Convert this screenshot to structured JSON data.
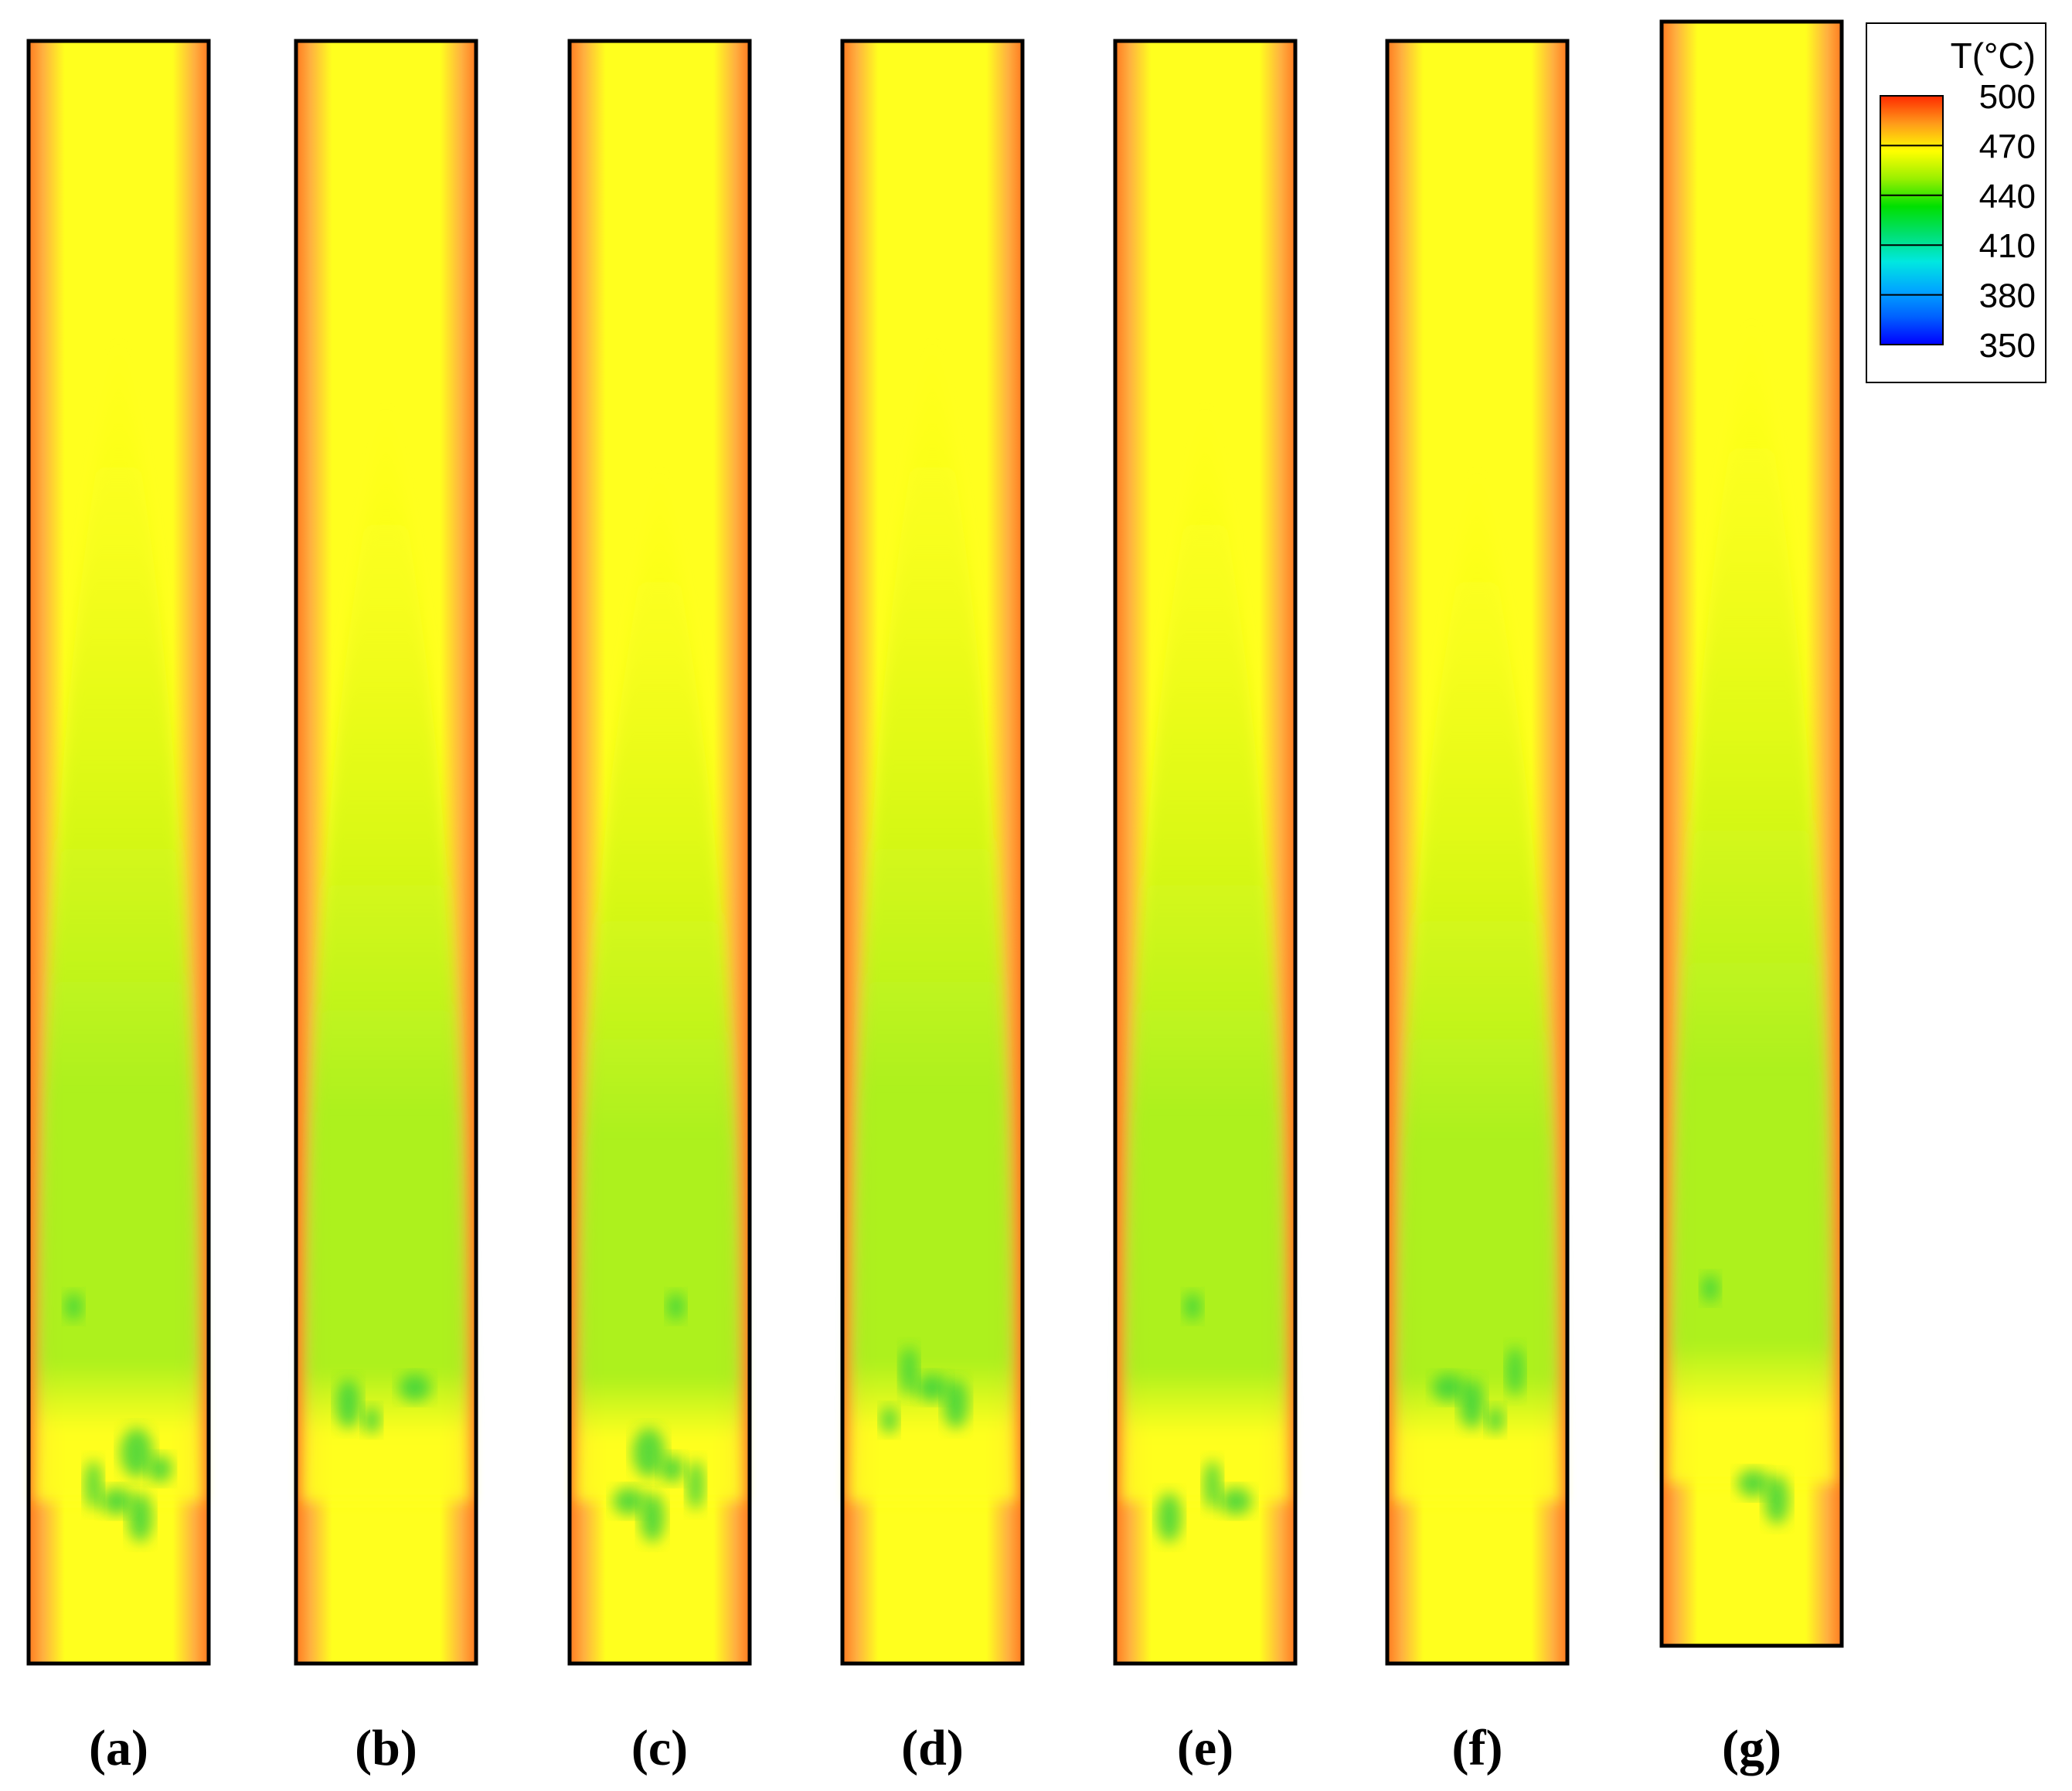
{
  "panels": [
    {
      "label": "(a)",
      "hot_spots": 6
    },
    {
      "label": "(b)",
      "hot_spots": 3
    },
    {
      "label": "(c)",
      "hot_spots": 6
    },
    {
      "label": "(d)",
      "hot_spots": 4
    },
    {
      "label": "(e)",
      "hot_spots": 4
    },
    {
      "label": "(f)",
      "hot_spots": 4
    },
    {
      "label": "(g)",
      "hot_spots": 3
    }
  ],
  "legend": {
    "title": "T(°C)",
    "ticks": [
      "500",
      "470",
      "440",
      "410",
      "380",
      "350"
    ],
    "stops": [
      {
        "value": 500,
        "color": "#ff2a00"
      },
      {
        "value": 485,
        "color": "#ff9a1a"
      },
      {
        "value": 470,
        "color": "#ffff00"
      },
      {
        "value": 455,
        "color": "#9af000"
      },
      {
        "value": 440,
        "color": "#00e000"
      },
      {
        "value": 425,
        "color": "#00e070"
      },
      {
        "value": 410,
        "color": "#00e8e0"
      },
      {
        "value": 395,
        "color": "#00a8ff"
      },
      {
        "value": 380,
        "color": "#0060ff"
      },
      {
        "value": 350,
        "color": "#0000ff"
      }
    ]
  },
  "colors": {
    "wall": "#ff7a20",
    "near_wall": "#ffb040",
    "core_hot": "#ffff1e",
    "core_mid": "#d8f810",
    "core_cool": "#a8f020",
    "core_cold": "#6ae030",
    "spot": "#30d040",
    "frame": "#000000"
  }
}
